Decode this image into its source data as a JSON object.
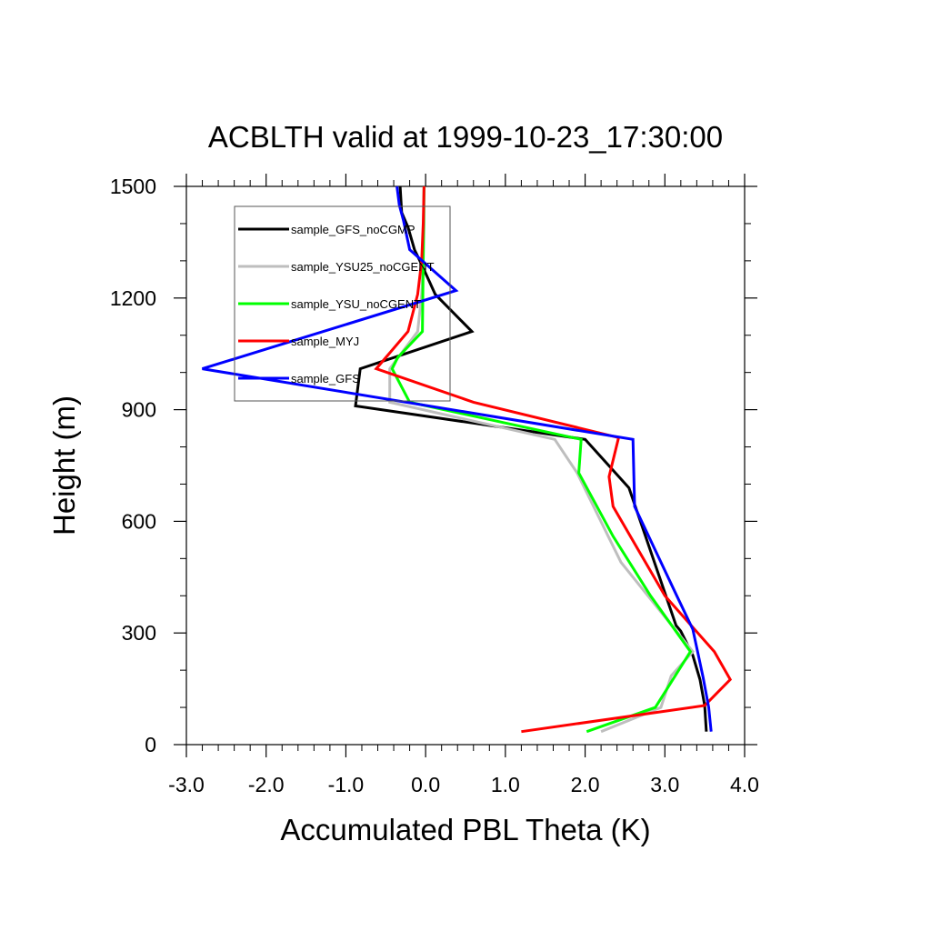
{
  "chart_data": {
    "type": "line",
    "title": "ACBLTH valid at 1999-10-23_17:30:00",
    "xlabel": "Accumulated PBL Theta (K)",
    "ylabel": "Height (m)",
    "xlim": [
      -3.0,
      4.0
    ],
    "ylim": [
      0,
      1500
    ],
    "xticks": [
      -3.0,
      -2.0,
      -1.0,
      0.0,
      1.0,
      2.0,
      3.0,
      4.0
    ],
    "xtick_labels": [
      "-3.0",
      "-2.0",
      "-1.0",
      "0.0",
      "1.0",
      "2.0",
      "3.0",
      "4.0"
    ],
    "yticks": [
      0,
      300,
      600,
      900,
      1200,
      1500
    ],
    "ytick_labels": [
      "0",
      "300",
      "600",
      "900",
      "1200",
      "1500"
    ],
    "grid": false,
    "legend_position": "top-left",
    "series": [
      {
        "name": "sample_GFS_noCGMP",
        "color": "#000000",
        "x": [
          3.52,
          3.5,
          3.44,
          3.35,
          3.2,
          3.14,
          2.55,
          2.0,
          -0.88,
          -0.82,
          0.58,
          0.12,
          -0.05,
          -0.14,
          -0.22,
          -0.3,
          -0.32
        ],
        "y": [
          35,
          105,
          175,
          240,
          305,
          320,
          690,
          820,
          910,
          1010,
          1110,
          1210,
          1290,
          1330,
          1390,
          1430,
          1500
        ]
      },
      {
        "name": "sample_YSU25_noCGENT",
        "color": "#bebebe",
        "x": [
          2.2,
          2.95,
          3.08,
          3.35,
          2.45,
          1.9,
          1.62,
          -0.45,
          -0.45,
          -0.1,
          -0.05,
          -0.03,
          -0.02,
          -0.02
        ],
        "y": [
          35,
          100,
          185,
          250,
          490,
          730,
          820,
          920,
          1010,
          1110,
          1210,
          1300,
          1400,
          1500
        ]
      },
      {
        "name": "sample_YSU_noCGENT",
        "color": "#00ff00",
        "x": [
          2.02,
          2.88,
          3.32,
          2.82,
          2.35,
          1.92,
          1.95,
          -0.2,
          -0.42,
          -0.35,
          -0.04,
          -0.03,
          -0.02
        ],
        "y": [
          35,
          100,
          250,
          400,
          560,
          730,
          820,
          920,
          1010,
          1040,
          1110,
          1300,
          1500
        ]
      },
      {
        "name": "sample_MYJ",
        "color": "#ff0000",
        "x": [
          1.2,
          3.5,
          3.82,
          3.62,
          3.0,
          2.35,
          2.3,
          2.42,
          0.6,
          -0.62,
          -0.22,
          -0.1,
          -0.05,
          -0.03,
          -0.02
        ],
        "y": [
          35,
          105,
          175,
          250,
          400,
          640,
          720,
          825,
          920,
          1010,
          1110,
          1210,
          1300,
          1400,
          1500
        ]
      },
      {
        "name": "sample_GFS",
        "color": "#0000ff",
        "x": [
          3.58,
          3.55,
          3.48,
          3.35,
          3.15,
          2.62,
          2.6,
          -2.8,
          0.38,
          -0.2,
          -0.28,
          -0.33,
          -0.36
        ],
        "y": [
          35,
          100,
          180,
          310,
          400,
          640,
          820,
          1010,
          1220,
          1330,
          1410,
          1450,
          1500
        ]
      }
    ]
  }
}
